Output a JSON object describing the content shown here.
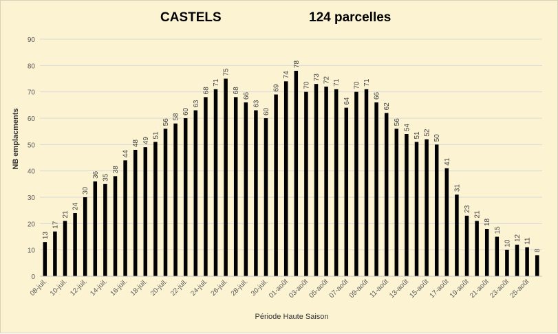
{
  "chart_data": {
    "type": "bar",
    "title": "CASTELS",
    "subtitle": "124 parcelles",
    "xlabel": "Période Haute Saison",
    "ylabel": "NB emplacments",
    "ylim": [
      0,
      90
    ],
    "yticks": [
      0,
      10,
      20,
      30,
      40,
      50,
      60,
      70,
      80,
      90
    ],
    "grid": true,
    "bar_color": "#000000",
    "background": "#fcf3d3",
    "categories": [
      "08-juil.",
      "09-juil.",
      "10-juil.",
      "11-juil.",
      "12-juil.",
      "13-juil.",
      "14-juil.",
      "15-juil.",
      "16-juil.",
      "17-juil.",
      "18-juil.",
      "19-juil.",
      "20-juil.",
      "21-juil.",
      "22-juil.",
      "23-juil.",
      "24-juil.",
      "25-juil.",
      "26-juil.",
      "27-juil.",
      "28-juil.",
      "29-juil.",
      "30-juil.",
      "31-juil.",
      "01-août",
      "02-août",
      "03-août",
      "04-août",
      "05-août",
      "06-août",
      "07-août",
      "08-août",
      "09-août",
      "10-août",
      "11-août",
      "12-août",
      "13-août",
      "14-août",
      "15-août",
      "16-août",
      "17-août",
      "18-août",
      "19-août",
      "20-août",
      "21-août",
      "22-août",
      "23-août",
      "24-août",
      "25-août",
      "26-août"
    ],
    "shown_tick_labels": [
      "08-juil.",
      "10-juil.",
      "12-juil.",
      "14-juil.",
      "16-juil.",
      "18-juil.",
      "20-juil.",
      "22-juil.",
      "24-juil.",
      "26-juil.",
      "28-juil.",
      "30-juil.",
      "01-août",
      "03-août",
      "05-août",
      "07-août",
      "09-août",
      "11-août",
      "13-août",
      "15-août",
      "17-août",
      "19-août",
      "21-août",
      "23-août",
      "25-août"
    ],
    "values": [
      13,
      17,
      21,
      24,
      30,
      36,
      35,
      38,
      44,
      48,
      49,
      51,
      56,
      58,
      60,
      63,
      68,
      71,
      75,
      68,
      66,
      63,
      60,
      69,
      74,
      78,
      70,
      73,
      72,
      71,
      64,
      70,
      71,
      66,
      62,
      56,
      54,
      51,
      52,
      50,
      41,
      31,
      23,
      21,
      18,
      15,
      10,
      12,
      11,
      8
    ]
  }
}
